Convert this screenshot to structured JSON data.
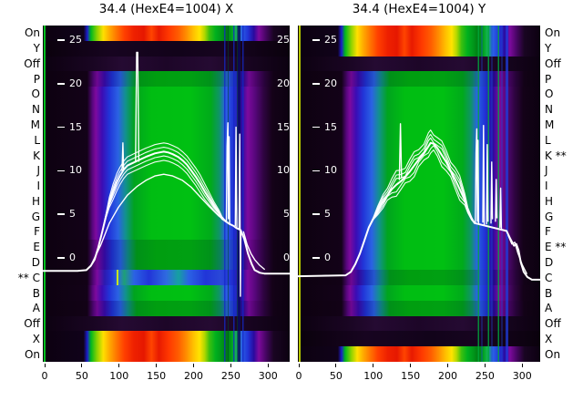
{
  "titles": {
    "left": "34.4 (HexE4=1004) X",
    "right": "34.4 (HexE4=1004) Y"
  },
  "star_marker": "**",
  "y_axis": {
    "ticks": [
      "25",
      "20",
      "15",
      "10",
      "5",
      "0"
    ],
    "tick_values": [
      25,
      20,
      15,
      10,
      5,
      0
    ]
  },
  "x_axis": {
    "ticks": [
      "0",
      "50",
      "100",
      "150",
      "200",
      "250",
      "300"
    ],
    "tick_values": [
      0,
      50,
      100,
      150,
      200,
      250,
      300
    ]
  },
  "rows": [
    {
      "label": "On",
      "star_left": false,
      "star_right": false,
      "x_band": "hot",
      "y_band": "hot"
    },
    {
      "label": "Y",
      "star_left": false,
      "star_right": false,
      "x_band": "dark",
      "y_band": "hot"
    },
    {
      "label": "Off",
      "star_left": false,
      "star_right": false,
      "x_band": "off",
      "y_band": "off"
    },
    {
      "label": "P",
      "star_left": false,
      "star_right": false,
      "x_band": "coolB",
      "y_band": "coolB"
    },
    {
      "label": "O",
      "star_left": false,
      "star_right": false,
      "x_band": "coolA",
      "y_band": "coolA"
    },
    {
      "label": "N",
      "star_left": false,
      "star_right": false,
      "x_band": "coolA",
      "y_band": "coolA"
    },
    {
      "label": "M",
      "star_left": false,
      "star_right": false,
      "x_band": "coolA",
      "y_band": "coolA"
    },
    {
      "label": "L",
      "star_left": false,
      "star_right": false,
      "x_band": "coolA",
      "y_band": "coolA"
    },
    {
      "label": "K",
      "star_left": false,
      "star_right": true,
      "x_band": "coolA",
      "y_band": "coolA"
    },
    {
      "label": "J",
      "star_left": false,
      "star_right": false,
      "x_band": "coolA",
      "y_band": "coolA"
    },
    {
      "label": "I",
      "star_left": false,
      "star_right": false,
      "x_band": "coolA",
      "y_band": "coolA"
    },
    {
      "label": "H",
      "star_left": false,
      "star_right": false,
      "x_band": "coolA",
      "y_band": "coolA"
    },
    {
      "label": "G",
      "star_left": false,
      "star_right": false,
      "x_band": "coolA",
      "y_band": "coolA"
    },
    {
      "label": "F",
      "star_left": false,
      "star_right": false,
      "x_band": "coolA",
      "y_band": "coolA"
    },
    {
      "label": "E",
      "star_left": false,
      "star_right": true,
      "x_band": "coolB",
      "y_band": "coolA"
    },
    {
      "label": "D",
      "star_left": false,
      "star_right": false,
      "x_band": "coolB",
      "y_band": "coolA"
    },
    {
      "label": "C",
      "star_left": true,
      "star_right": false,
      "x_band": "coolC",
      "y_band": "coolB"
    },
    {
      "label": "B",
      "star_left": false,
      "star_right": false,
      "x_band": "coolA",
      "y_band": "coolA"
    },
    {
      "label": "A",
      "star_left": false,
      "star_right": false,
      "x_band": "coolB",
      "y_band": "coolB"
    },
    {
      "label": "Off",
      "star_left": false,
      "star_right": false,
      "x_band": "off",
      "y_band": "off"
    },
    {
      "label": "X",
      "star_left": false,
      "star_right": false,
      "x_band": "hot",
      "y_band": "dark"
    },
    {
      "label": "On",
      "star_left": false,
      "star_right": false,
      "x_band": "hot",
      "y_band": "hot"
    }
  ],
  "colors": {
    "curve": "#ffffff",
    "hot_core": "#ee2000",
    "cool_core": "#00bd12",
    "purple": "#7d0a9e",
    "blue": "#2135d8",
    "dark": "#0c0110",
    "edge_left": "#00d41e",
    "edge_right": "#c8dc00"
  },
  "chart_data": [
    {
      "type": "heatmap",
      "title": "34.4 (HexE4=1004) X",
      "x_range": [
        -2,
        329
      ],
      "x_ticks": [
        0,
        50,
        100,
        150,
        200,
        250,
        300
      ],
      "value_ticks": [
        25,
        20,
        15,
        10,
        5,
        0
      ],
      "row_categories": [
        "On",
        "Y",
        "Off",
        "P",
        "O",
        "N",
        "M",
        "L",
        "K",
        "J",
        "I",
        "H",
        "G",
        "F",
        "E",
        "D",
        "C",
        "B",
        "A",
        "Off",
        "X",
        "On"
      ],
      "hot_row_indices": [
        0,
        20,
        21
      ],
      "starred_rows": [
        "C"
      ],
      "legend": "none",
      "grid": false,
      "overlay_traces": [
        {
          "name": "main",
          "x": [
            -2,
            44,
            56,
            62,
            67,
            72,
            77,
            82,
            87,
            92,
            97,
            101,
            106,
            111,
            116,
            121,
            126,
            131,
            136,
            142,
            148,
            154,
            160,
            166,
            172,
            179,
            185,
            191,
            197,
            203,
            209,
            215,
            221,
            227,
            234,
            238,
            243,
            248,
            253,
            258,
            263,
            268,
            273,
            278,
            282,
            289,
            295,
            329
          ],
          "v": [
            -1.5,
            -1.5,
            -1.4,
            -0.9,
            -0.2,
            1.2,
            2.9,
            4.7,
            6.4,
            7.6,
            8.7,
            9.4,
            10.1,
            10.6,
            10.8,
            11.0,
            11.2,
            11.4,
            11.6,
            11.8,
            12.0,
            12.1,
            12.2,
            12.1,
            11.9,
            11.6,
            11.2,
            10.7,
            10.0,
            9.3,
            8.5,
            7.6,
            6.8,
            6.0,
            5.2,
            4.6,
            4.2,
            3.9,
            3.7,
            3.4,
            3.2,
            2.2,
            0.5,
            -0.7,
            -1.4,
            -1.7,
            -1.8,
            -1.8
          ]
        },
        {
          "name": "lower",
          "x": [
            62,
            75,
            87,
            99,
            111,
            124,
            136,
            148,
            160,
            172,
            185,
            197,
            209,
            221,
            234,
            243
          ],
          "v": [
            -0.9,
            1.4,
            4.0,
            5.8,
            7.2,
            8.2,
            8.9,
            9.4,
            9.6,
            9.4,
            8.9,
            8.1,
            7.0,
            5.9,
            4.8,
            4.2
          ]
        }
      ],
      "bundle_offsets": [
        0.5,
        1.0,
        -0.5,
        -1.0
      ],
      "spike_segments": [
        {
          "x": [
            104,
            105,
            106
          ],
          "v": [
            10.0,
            13.2,
            10.1
          ]
        },
        {
          "x": [
            122,
            123.5,
            125,
            126.5
          ],
          "v": [
            11.0,
            23.6,
            23.6,
            11.1
          ]
        },
        {
          "x": [
            244,
            245,
            246,
            246.8,
            247.6,
            248.4
          ],
          "v": [
            4.2,
            12.8,
            15.5,
            4.5,
            13.9,
            4.0
          ]
        },
        {
          "x": [
            256,
            257,
            258
          ],
          "v": [
            3.7,
            15.0,
            3.5
          ]
        },
        {
          "x": [
            261,
            262,
            262.8,
            263.6
          ],
          "v": [
            3.4,
            14.2,
            -4.4,
            3.2
          ]
        },
        {
          "x": [
            267,
            272,
            277,
            282,
            288,
            295
          ],
          "v": [
            3.0,
            1.5,
            0.5,
            -0.2,
            -0.8,
            -1.3
          ]
        }
      ]
    },
    {
      "type": "heatmap",
      "title": "34.4 (HexE4=1004) Y",
      "x_range": [
        -1,
        324
      ],
      "x_ticks": [
        0,
        50,
        100,
        150,
        200,
        250,
        300
      ],
      "value_ticks": [
        25,
        20,
        15,
        10,
        5,
        0
      ],
      "row_categories": [
        "On",
        "Y",
        "Off",
        "P",
        "O",
        "N",
        "M",
        "L",
        "K",
        "J",
        "I",
        "H",
        "G",
        "F",
        "E",
        "D",
        "C",
        "B",
        "A",
        "Off",
        "X",
        "On"
      ],
      "hot_row_indices": [
        0,
        1,
        21
      ],
      "starred_rows": [
        "K",
        "E"
      ],
      "legend": "none",
      "grid": false,
      "overlay_traces": [
        {
          "name": "main",
          "x": [
            -1,
            63,
            70,
            76,
            82,
            88,
            94,
            100,
            106,
            113,
            119,
            125,
            131,
            137,
            143,
            149,
            155,
            161,
            168,
            174,
            177,
            181,
            186,
            192,
            198,
            204,
            210,
            216,
            223,
            227,
            232,
            236,
            279,
            284,
            289,
            292,
            295,
            298,
            302,
            307,
            313,
            324
          ],
          "v": [
            -2.1,
            -2.0,
            -1.6,
            -0.7,
            0.5,
            2.0,
            3.5,
            4.5,
            5.4,
            6.4,
            7.2,
            7.9,
            8.4,
            8.8,
            9.3,
            9.9,
            10.6,
            11.3,
            12.0,
            12.8,
            13.2,
            13.1,
            12.6,
            11.8,
            11.0,
            10.0,
            9.0,
            7.9,
            6.6,
            5.4,
            4.5,
            4.0,
            3.1,
            2.2,
            1.4,
            1.6,
            0.9,
            -0.5,
            -1.6,
            -2.2,
            -2.5,
            -2.5
          ]
        }
      ],
      "bundle_offsets": [
        0.4,
        0.8,
        1.3,
        -0.5,
        -1.0
      ],
      "spike_segments": [
        {
          "x": [
            135,
            136.5,
            138
          ],
          "v": [
            9.0,
            15.4,
            9.2
          ]
        },
        {
          "x": [
            237,
            238,
            239,
            239.8,
            240.6,
            241.4
          ],
          "v": [
            4.0,
            12.0,
            14.8,
            4.2,
            13.5,
            4.0
          ]
        },
        {
          "x": [
            247,
            248,
            249
          ],
          "v": [
            4.1,
            15.2,
            3.8
          ]
        },
        {
          "x": [
            252,
            253,
            254
          ],
          "v": [
            3.9,
            13.0,
            4.2
          ]
        },
        {
          "x": [
            258,
            259,
            260
          ],
          "v": [
            4.0,
            11.0,
            4.5
          ]
        },
        {
          "x": [
            264,
            265,
            266
          ],
          "v": [
            4.2,
            9.0,
            4.6
          ]
        },
        {
          "x": [
            270,
            271,
            272
          ],
          "v": [
            3.5,
            8.0,
            3.3
          ]
        },
        {
          "x": [
            281,
            286,
            290,
            294,
            300,
            306
          ],
          "v": [
            2.6,
            1.6,
            1.8,
            0.6,
            -0.8,
            -1.8
          ]
        }
      ]
    }
  ]
}
